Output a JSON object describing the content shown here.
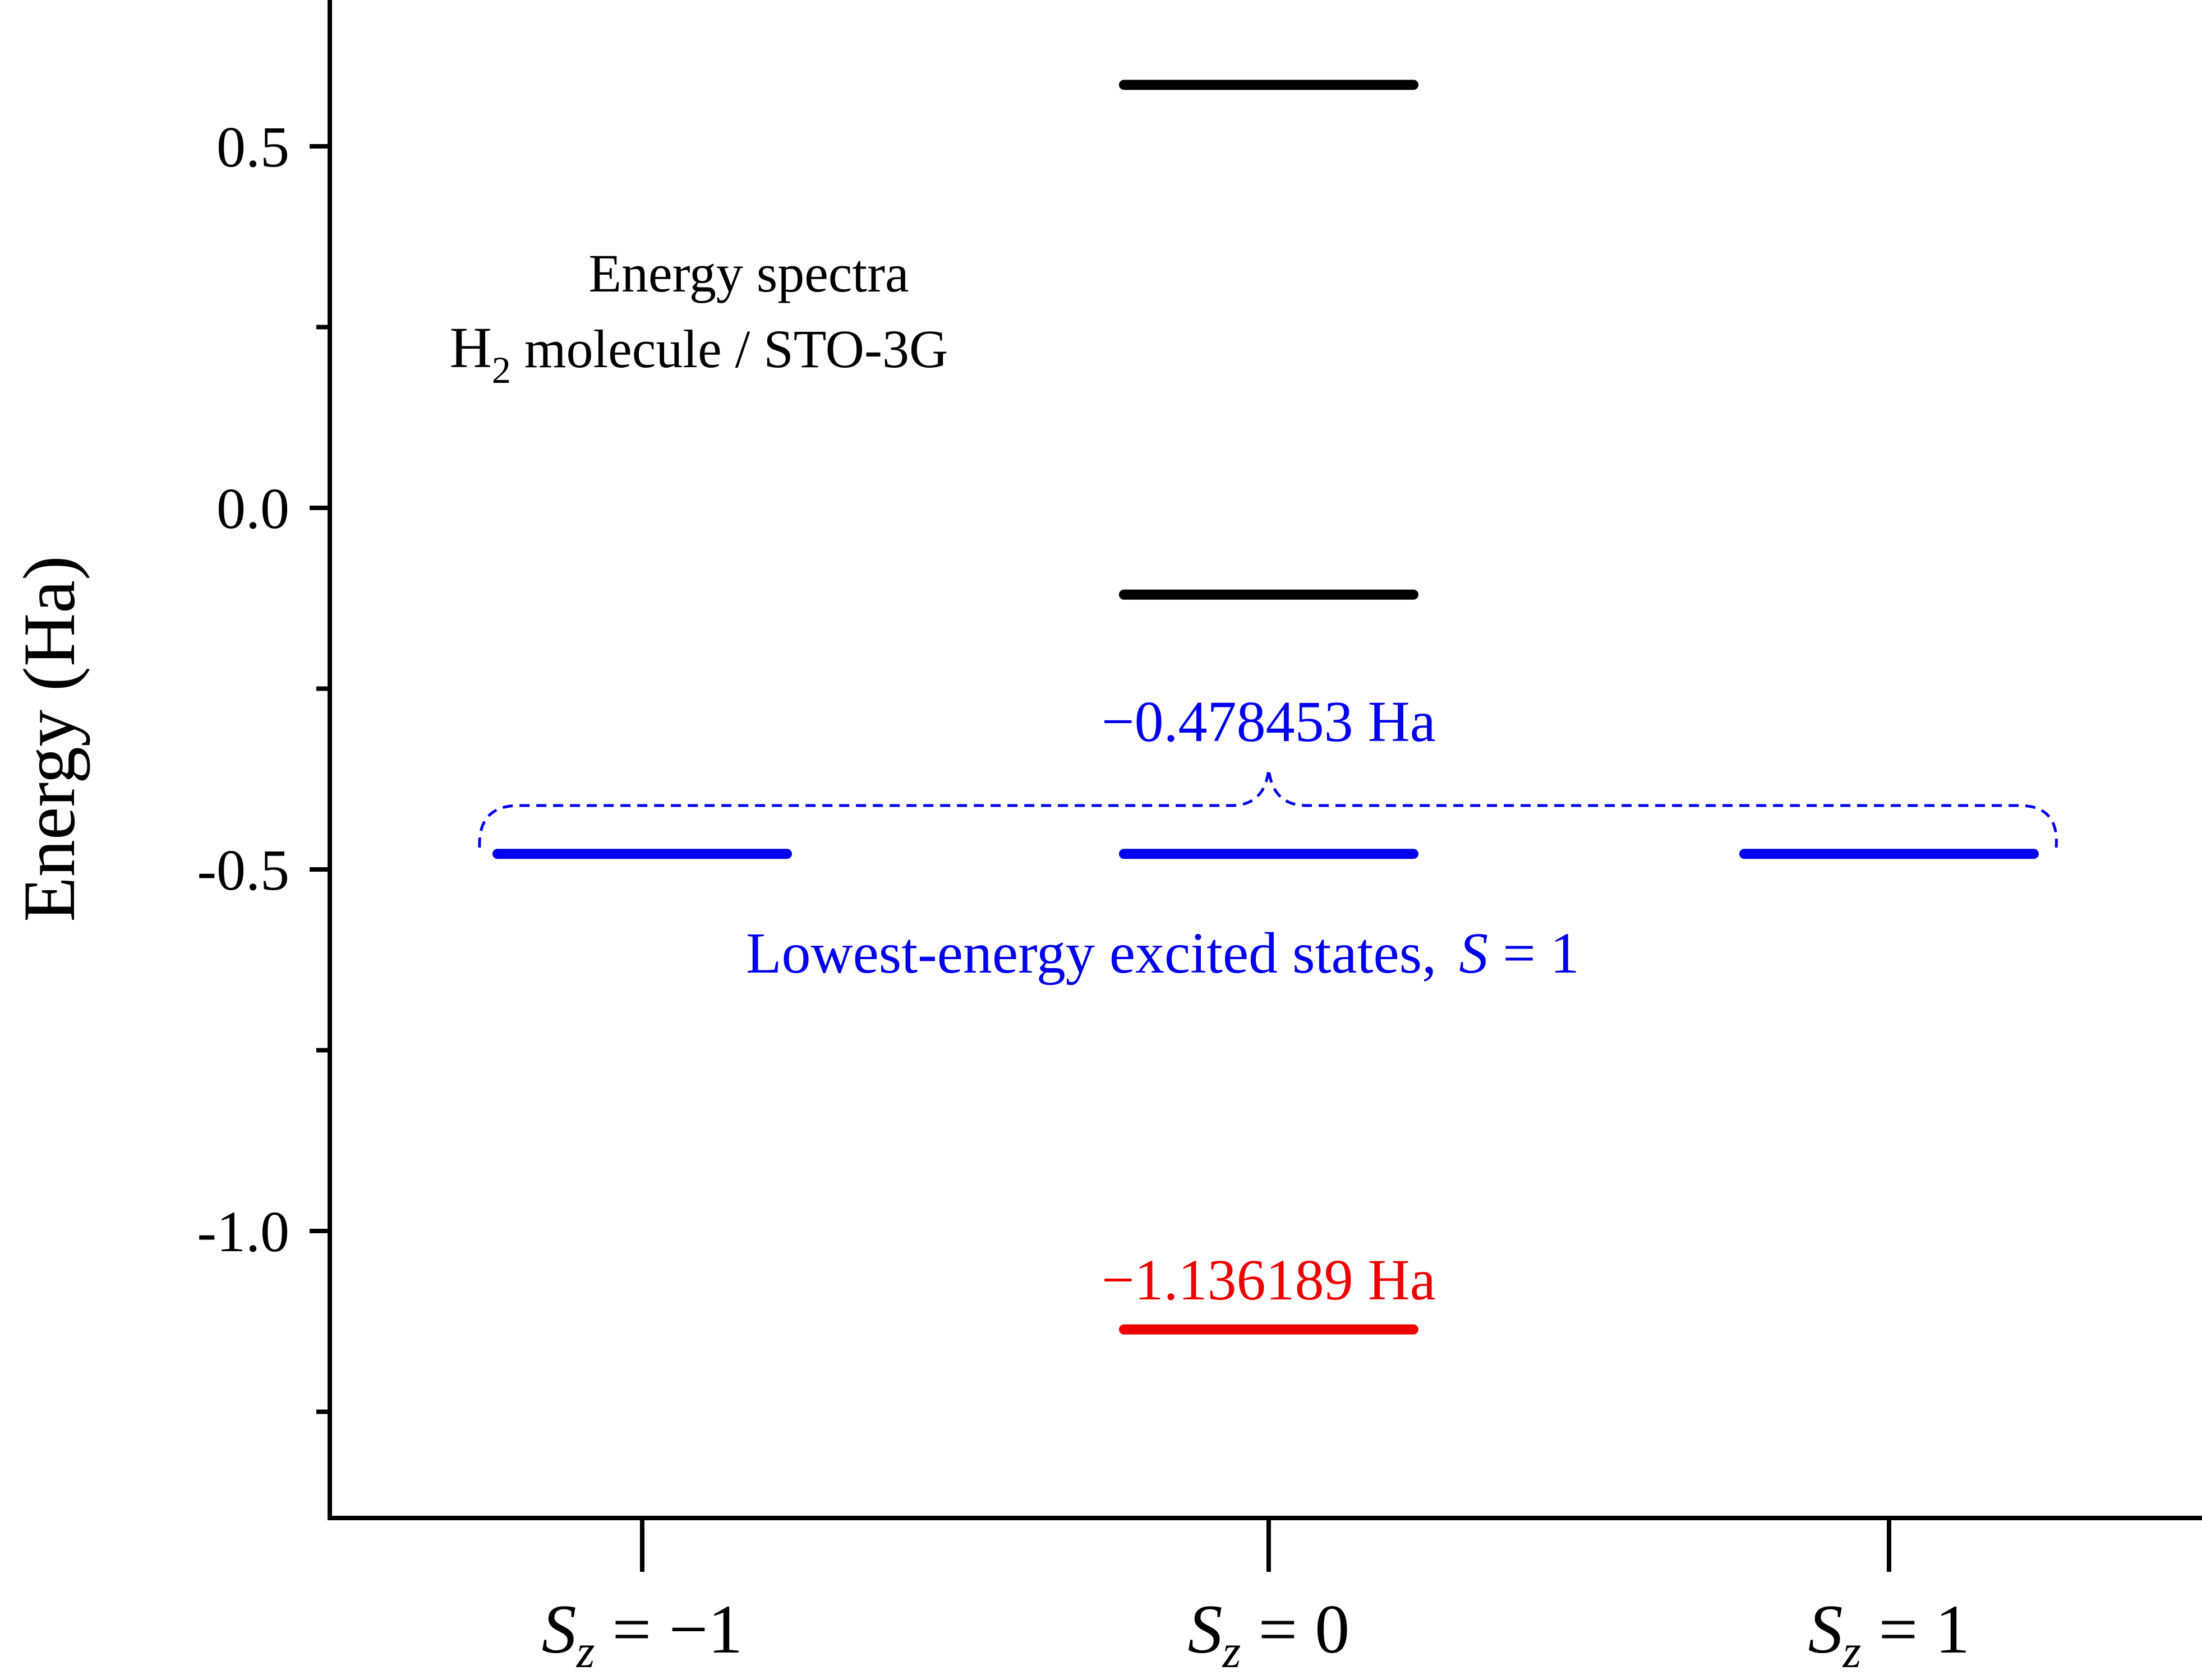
{
  "chart_data": {
    "type": "energy-level diagram",
    "title_lines": [
      "Energy spectra",
      "H",
      "2",
      " molecule / STO-3G"
    ],
    "ylabel": "Energy (Ha)",
    "ylim": [
      -1.4,
      0.7
    ],
    "yticks": [
      -1.0,
      -0.5,
      0.0,
      0.5
    ],
    "ytick_labels": [
      "-1.0",
      "-0.5",
      "0.0",
      "0.5"
    ],
    "minor_yticks": [
      -1.25,
      -0.75,
      -0.25,
      0.25
    ],
    "categories": [
      {
        "S": "S",
        "sub": "z",
        "rel": " = ",
        "val": "−1"
      },
      {
        "S": "S",
        "sub": "z",
        "rel": " = ",
        "val": "0"
      },
      {
        "S": "S",
        "sub": "z",
        "rel": " = ",
        "val": "1"
      }
    ],
    "levels": [
      {
        "category": 1,
        "energy": 0.585,
        "color": "#000000"
      },
      {
        "category": 1,
        "energy": -0.12,
        "color": "#000000"
      },
      {
        "category": 0,
        "energy": -0.478453,
        "color": "#0000ee"
      },
      {
        "category": 1,
        "energy": -0.478453,
        "color": "#0000ee"
      },
      {
        "category": 2,
        "energy": -0.478453,
        "color": "#0000ee"
      },
      {
        "category": 1,
        "energy": -1.136189,
        "color": "#ee0000"
      }
    ],
    "annotations": {
      "triplet_energy": "−0.478453 Ha",
      "ground_energy": "−1.136189 Ha",
      "triplet_label": "Lowest-energy excited states,",
      "triplet_S": "S",
      "triplet_eq": " = 1"
    },
    "colors": {
      "axis": "#000000",
      "triplet": "#0000ee",
      "ground": "#ee0000",
      "other": "#000000"
    }
  }
}
